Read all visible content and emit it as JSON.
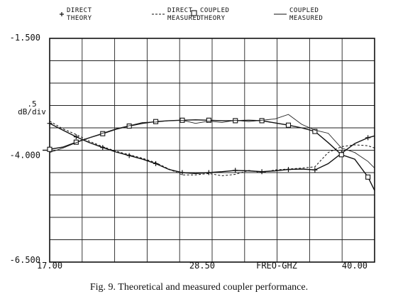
{
  "chart_data": {
    "type": "line",
    "legend": [
      {
        "symbol": "+",
        "label_lines": [
          "DIRECT",
          "THEORY"
        ]
      },
      {
        "symbol": "",
        "label_lines": [
          "DIRECT",
          "MEASURED"
        ]
      },
      {
        "symbol": "□",
        "label_lines": [
          "COUPLED",
          "THEORY"
        ]
      },
      {
        "symbol": "",
        "label_lines": [
          "COUPLED",
          "MEASURED"
        ]
      }
    ],
    "y_ticks": [
      "-1.500",
      "-4.000",
      "-6.500"
    ],
    "y_scale_label": ".5",
    "y_scale_unit": "dB/div",
    "x_ticks": [
      "17.00",
      "28.50",
      "40.00"
    ],
    "x_axis_label": "FREQ-GHZ",
    "xlim": [
      17.0,
      41.5
    ],
    "ylim": [
      -6.5,
      -1.5
    ],
    "grid": true,
    "series": [
      {
        "name": "DIRECT THEORY",
        "style": "solid",
        "marker": "+",
        "x": [
          17.0,
          18.0,
          19.0,
          20.0,
          21.0,
          22.0,
          23.0,
          24.0,
          25.0,
          26.0,
          27.0,
          28.0,
          29.0,
          30.0,
          31.0,
          32.0,
          33.0,
          34.0,
          35.0,
          36.0,
          37.0,
          38.0,
          39.0,
          40.0,
          41.0,
          41.5
        ],
        "y": [
          -3.4,
          -3.55,
          -3.7,
          -3.83,
          -3.94,
          -4.04,
          -4.12,
          -4.2,
          -4.3,
          -4.43,
          -4.5,
          -4.52,
          -4.5,
          -4.48,
          -4.45,
          -4.46,
          -4.48,
          -4.46,
          -4.43,
          -4.42,
          -4.44,
          -4.3,
          -4.07,
          -3.85,
          -3.72,
          -3.68
        ]
      },
      {
        "name": "DIRECT MEASURED",
        "style": "dashed",
        "x": [
          17.0,
          18.0,
          19.0,
          20.0,
          21.0,
          22.0,
          23.0,
          24.0,
          25.0,
          26.0,
          27.0,
          28.0,
          29.0,
          30.0,
          31.0,
          32.0,
          33.0,
          34.0,
          35.0,
          36.0,
          37.0,
          38.0,
          39.0,
          40.0,
          41.0,
          41.5
        ],
        "y": [
          -3.35,
          -3.52,
          -3.65,
          -3.8,
          -3.92,
          -4.02,
          -4.1,
          -4.18,
          -4.28,
          -4.42,
          -4.55,
          -4.55,
          -4.52,
          -4.57,
          -4.54,
          -4.45,
          -4.5,
          -4.44,
          -4.42,
          -4.4,
          -4.37,
          -4.05,
          -3.92,
          -3.88,
          -3.9,
          -3.95
        ]
      },
      {
        "name": "COUPLED THEORY",
        "style": "solid",
        "marker": "square",
        "x": [
          17.0,
          18.0,
          19.0,
          20.0,
          21.0,
          22.0,
          23.0,
          24.0,
          25.0,
          26.0,
          27.0,
          28.0,
          29.0,
          30.0,
          31.0,
          32.0,
          33.0,
          34.0,
          35.0,
          36.0,
          37.0,
          38.0,
          39.0,
          40.0,
          41.0,
          41.5
        ],
        "y": [
          -3.98,
          -3.93,
          -3.82,
          -3.72,
          -3.63,
          -3.53,
          -3.46,
          -3.4,
          -3.36,
          -3.34,
          -3.33,
          -3.32,
          -3.33,
          -3.34,
          -3.34,
          -3.33,
          -3.34,
          -3.39,
          -3.44,
          -3.5,
          -3.58,
          -3.83,
          -4.1,
          -4.2,
          -4.6,
          -4.9
        ]
      },
      {
        "name": "COUPLED MEASURED",
        "style": "solid-thin",
        "x": [
          17.0,
          18.0,
          19.0,
          20.0,
          21.0,
          22.0,
          23.0,
          24.0,
          25.0,
          26.0,
          27.0,
          28.0,
          29.0,
          30.0,
          31.0,
          32.0,
          33.0,
          34.0,
          35.0,
          36.0,
          37.0,
          38.0,
          39.0,
          40.0,
          41.0,
          41.5
        ],
        "y": [
          -4.05,
          -3.95,
          -3.83,
          -3.72,
          -3.62,
          -3.52,
          -3.45,
          -3.38,
          -3.37,
          -3.34,
          -3.33,
          -3.4,
          -3.35,
          -3.38,
          -3.33,
          -3.36,
          -3.33,
          -3.3,
          -3.2,
          -3.42,
          -3.55,
          -3.62,
          -3.95,
          -4.05,
          -4.25,
          -4.4
        ]
      }
    ]
  },
  "caption": "Fig. 9.   Theoretical and measured coupler performance."
}
